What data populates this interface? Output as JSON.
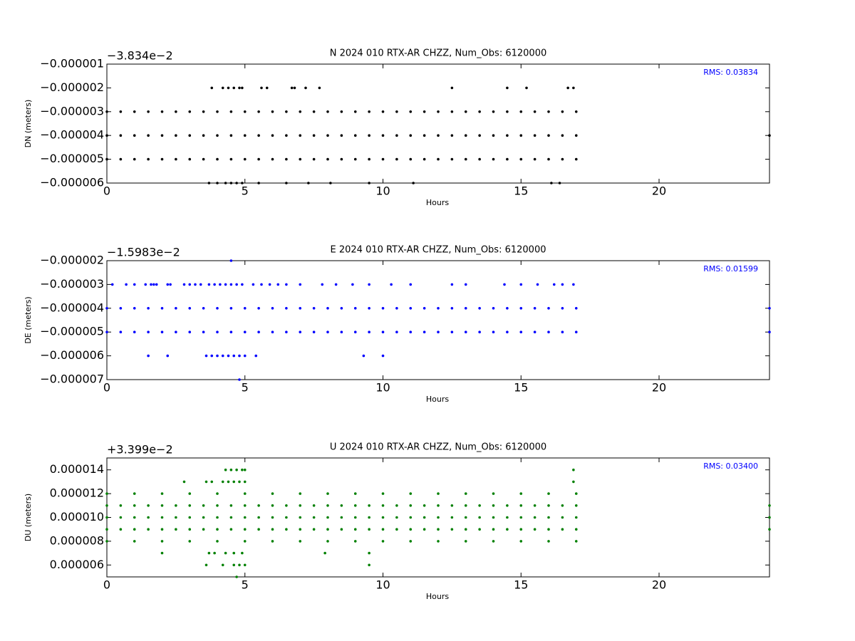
{
  "chart_data": [
    {
      "type": "scatter",
      "title": "N 2024 010 RTX-AR  CHZZ, Num_Obs: 6120000",
      "xlabel": "Hours",
      "ylabel": "DN (meters)",
      "offset_label": "−3.834e−2",
      "annotation": "RMS:  0.03834",
      "color": "#000000",
      "annotation_color": "#0000ff",
      "xlim": [
        0,
        24
      ],
      "xticks": [
        0,
        5,
        10,
        15,
        20
      ],
      "ylim": [
        -6e-06,
        -1e-06
      ],
      "yticks": [
        {
          "value": -6e-06,
          "label": "−0.000006"
        },
        {
          "value": -5e-06,
          "label": "−0.000005"
        },
        {
          "value": -4e-06,
          "label": "−0.000004"
        },
        {
          "value": -3e-06,
          "label": "−0.000003"
        },
        {
          "value": -2e-06,
          "label": "−0.000002"
        },
        {
          "value": -1e-06,
          "label": "−0.000001"
        }
      ],
      "x": [
        0,
        0.5,
        1,
        1.5,
        2,
        2.5,
        3,
        3.5,
        4,
        4.5,
        5,
        5.5,
        6,
        6.5,
        7,
        7.5,
        8,
        8.5,
        9,
        9.5,
        10,
        10.5,
        11,
        11.5,
        12,
        12.5,
        13,
        13.5,
        14,
        14.5,
        15,
        15.5,
        16,
        16.5,
        17,
        0,
        0.5,
        1,
        1.5,
        2,
        2.5,
        3,
        3.5,
        4,
        4.5,
        5,
        5.5,
        6,
        6.5,
        7,
        7.5,
        8,
        8.5,
        9,
        9.5,
        10,
        10.5,
        11,
        11.5,
        12,
        12.5,
        13,
        13.5,
        14,
        14.5,
        15,
        15.5,
        16,
        16.5,
        17,
        0,
        0.5,
        1,
        1.5,
        2,
        2.5,
        3,
        3.5,
        4,
        4.5,
        5,
        5.5,
        6,
        6.5,
        7,
        7.5,
        8,
        8.5,
        9,
        9.5,
        10,
        10.5,
        11,
        11.5,
        12,
        12.5,
        13,
        13.5,
        14,
        14.5,
        15,
        15.5,
        16,
        16.5,
        17,
        3.8,
        4.2,
        4.4,
        4.6,
        4.8,
        4.9,
        5.6,
        5.8,
        6.7,
        6.8,
        7.2,
        7.7,
        12.5,
        14.5,
        15.2,
        16.7,
        16.9,
        3.7,
        4.0,
        4.3,
        4.5,
        4.7,
        4.9,
        5.5,
        6.5,
        7.3,
        8.1,
        9.5,
        11.1,
        16.1,
        16.4,
        24
      ],
      "values": [
        -3e-06,
        -3e-06,
        -3e-06,
        -3e-06,
        -3e-06,
        -3e-06,
        -3e-06,
        -3e-06,
        -3e-06,
        -3e-06,
        -3e-06,
        -3e-06,
        -3e-06,
        -3e-06,
        -3e-06,
        -3e-06,
        -3e-06,
        -3e-06,
        -3e-06,
        -3e-06,
        -3e-06,
        -3e-06,
        -3e-06,
        -3e-06,
        -3e-06,
        -3e-06,
        -3e-06,
        -3e-06,
        -3e-06,
        -3e-06,
        -3e-06,
        -3e-06,
        -3e-06,
        -3e-06,
        -3e-06,
        -4e-06,
        -4e-06,
        -4e-06,
        -4e-06,
        -4e-06,
        -4e-06,
        -4e-06,
        -4e-06,
        -4e-06,
        -4e-06,
        -4e-06,
        -4e-06,
        -4e-06,
        -4e-06,
        -4e-06,
        -4e-06,
        -4e-06,
        -4e-06,
        -4e-06,
        -4e-06,
        -4e-06,
        -4e-06,
        -4e-06,
        -4e-06,
        -4e-06,
        -4e-06,
        -4e-06,
        -4e-06,
        -4e-06,
        -4e-06,
        -4e-06,
        -4e-06,
        -4e-06,
        -4e-06,
        -4e-06,
        -5e-06,
        -5e-06,
        -5e-06,
        -5e-06,
        -5e-06,
        -5e-06,
        -5e-06,
        -5e-06,
        -5e-06,
        -5e-06,
        -5e-06,
        -5e-06,
        -5e-06,
        -5e-06,
        -5e-06,
        -5e-06,
        -5e-06,
        -5e-06,
        -5e-06,
        -5e-06,
        -5e-06,
        -5e-06,
        -5e-06,
        -5e-06,
        -5e-06,
        -5e-06,
        -5e-06,
        -5e-06,
        -5e-06,
        -5e-06,
        -5e-06,
        -5e-06,
        -5e-06,
        -5e-06,
        -5e-06,
        -2e-06,
        -2e-06,
        -2e-06,
        -2e-06,
        -2e-06,
        -2e-06,
        -2e-06,
        -2e-06,
        -2e-06,
        -2e-06,
        -2e-06,
        -2e-06,
        -2e-06,
        -2e-06,
        -2e-06,
        -2e-06,
        -2e-06,
        -6e-06,
        -6e-06,
        -6e-06,
        -6e-06,
        -6e-06,
        -6e-06,
        -6e-06,
        -6e-06,
        -6e-06,
        -6e-06,
        -6e-06,
        -6e-06,
        -6e-06,
        -6e-06,
        -4e-06
      ]
    },
    {
      "type": "scatter",
      "title": "E 2024 010 RTX-AR  CHZZ, Num_Obs: 6120000",
      "xlabel": "Hours",
      "ylabel": "DE (meters)",
      "offset_label": "−1.5983e−2",
      "annotation": "RMS:  0.01599",
      "color": "#0000ff",
      "annotation_color": "#0000ff",
      "xlim": [
        0,
        24
      ],
      "xticks": [
        0,
        5,
        10,
        15,
        20
      ],
      "ylim": [
        -7e-06,
        -2e-06
      ],
      "yticks": [
        {
          "value": -7e-06,
          "label": "−0.000007"
        },
        {
          "value": -6e-06,
          "label": "−0.000006"
        },
        {
          "value": -5e-06,
          "label": "−0.000005"
        },
        {
          "value": -4e-06,
          "label": "−0.000004"
        },
        {
          "value": -3e-06,
          "label": "−0.000003"
        },
        {
          "value": -2e-06,
          "label": "−0.000002"
        }
      ],
      "x": [
        0,
        0.5,
        1,
        1.5,
        2,
        2.5,
        3,
        3.5,
        4,
        4.5,
        5,
        5.5,
        6,
        6.5,
        7,
        7.5,
        8,
        8.5,
        9,
        9.5,
        10,
        10.5,
        11,
        11.5,
        12,
        12.5,
        13,
        13.5,
        14,
        14.5,
        15,
        15.5,
        16,
        16.5,
        17,
        0,
        0.5,
        1,
        1.5,
        2,
        2.5,
        3,
        3.5,
        4,
        4.5,
        5,
        5.5,
        6,
        6.5,
        7,
        7.5,
        8,
        8.5,
        9,
        9.5,
        10,
        10.5,
        11,
        11.5,
        12,
        12.5,
        13,
        13.5,
        14,
        14.5,
        15,
        15.5,
        16,
        16.5,
        17,
        24,
        24,
        0.2,
        0.7,
        1.0,
        1.4,
        1.6,
        1.7,
        1.8,
        2.2,
        2.3,
        2.8,
        3.0,
        3.2,
        3.4,
        3.7,
        3.9,
        4.1,
        4.3,
        4.5,
        4.7,
        4.9,
        5.3,
        5.6,
        5.9,
        6.2,
        6.5,
        7.0,
        7.8,
        8.3,
        8.9,
        9.5,
        10.3,
        11.0,
        12.5,
        13.0,
        14.4,
        15.0,
        15.6,
        16.2,
        16.5,
        16.9,
        1.5,
        2.2,
        3.6,
        3.8,
        4.0,
        4.2,
        4.4,
        4.6,
        4.8,
        5.0,
        5.4,
        9.3,
        10.0,
        4.5,
        4.8
      ],
      "values": [
        -4e-06,
        -4e-06,
        -4e-06,
        -4e-06,
        -4e-06,
        -4e-06,
        -4e-06,
        -4e-06,
        -4e-06,
        -4e-06,
        -4e-06,
        -4e-06,
        -4e-06,
        -4e-06,
        -4e-06,
        -4e-06,
        -4e-06,
        -4e-06,
        -4e-06,
        -4e-06,
        -4e-06,
        -4e-06,
        -4e-06,
        -4e-06,
        -4e-06,
        -4e-06,
        -4e-06,
        -4e-06,
        -4e-06,
        -4e-06,
        -4e-06,
        -4e-06,
        -4e-06,
        -4e-06,
        -4e-06,
        -5e-06,
        -5e-06,
        -5e-06,
        -5e-06,
        -5e-06,
        -5e-06,
        -5e-06,
        -5e-06,
        -5e-06,
        -5e-06,
        -5e-06,
        -5e-06,
        -5e-06,
        -5e-06,
        -5e-06,
        -5e-06,
        -5e-06,
        -5e-06,
        -5e-06,
        -5e-06,
        -5e-06,
        -5e-06,
        -5e-06,
        -5e-06,
        -5e-06,
        -5e-06,
        -5e-06,
        -5e-06,
        -5e-06,
        -5e-06,
        -5e-06,
        -5e-06,
        -5e-06,
        -5e-06,
        -5e-06,
        -4e-06,
        -5e-06,
        -3e-06,
        -3e-06,
        -3e-06,
        -3e-06,
        -3e-06,
        -3e-06,
        -3e-06,
        -3e-06,
        -3e-06,
        -3e-06,
        -3e-06,
        -3e-06,
        -3e-06,
        -3e-06,
        -3e-06,
        -3e-06,
        -3e-06,
        -3e-06,
        -3e-06,
        -3e-06,
        -3e-06,
        -3e-06,
        -3e-06,
        -3e-06,
        -3e-06,
        -3e-06,
        -3e-06,
        -3e-06,
        -3e-06,
        -3e-06,
        -3e-06,
        -3e-06,
        -3e-06,
        -3e-06,
        -3e-06,
        -3e-06,
        -3e-06,
        -3e-06,
        -3e-06,
        -3e-06,
        -6e-06,
        -6e-06,
        -6e-06,
        -6e-06,
        -6e-06,
        -6e-06,
        -6e-06,
        -6e-06,
        -6e-06,
        -6e-06,
        -6e-06,
        -6e-06,
        -6e-06,
        -2e-06,
        -7e-06
      ]
    },
    {
      "type": "scatter",
      "title": "U 2024 010 RTX-AR  CHZZ, Num_Obs: 6120000",
      "xlabel": "Hours",
      "ylabel": "DU (meters)",
      "offset_label": "+3.399e−2",
      "annotation": "RMS:  0.03400",
      "color": "#008000",
      "annotation_color": "#0000ff",
      "xlim": [
        0,
        24
      ],
      "xticks": [
        0,
        5,
        10,
        15,
        20
      ],
      "ylim": [
        5e-06,
        1.5e-05
      ],
      "yticks": [
        {
          "value": 6e-06,
          "label": "0.000006"
        },
        {
          "value": 8e-06,
          "label": "0.000008"
        },
        {
          "value": 1e-05,
          "label": "0.000010"
        },
        {
          "value": 1.2e-05,
          "label": "0.000012"
        },
        {
          "value": 1.4e-05,
          "label": "0.000014"
        }
      ],
      "x": [
        0,
        0.5,
        1,
        1.5,
        2,
        2.5,
        3,
        3.5,
        4,
        4.5,
        5,
        5.5,
        6,
        6.5,
        7,
        7.5,
        8,
        8.5,
        9,
        9.5,
        10,
        10.5,
        11,
        11.5,
        12,
        12.5,
        13,
        13.5,
        14,
        14.5,
        15,
        15.5,
        16,
        16.5,
        17,
        0,
        0.5,
        1,
        1.5,
        2,
        2.5,
        3,
        3.5,
        4,
        4.5,
        5,
        5.5,
        6,
        6.5,
        7,
        7.5,
        8,
        8.5,
        9,
        9.5,
        10,
        10.5,
        11,
        11.5,
        12,
        12.5,
        13,
        13.5,
        14,
        14.5,
        15,
        15.5,
        16,
        16.5,
        17,
        0,
        0.5,
        1,
        1.5,
        2,
        2.5,
        3,
        3.5,
        4,
        4.5,
        5,
        5.5,
        6,
        6.5,
        7,
        7.5,
        8,
        8.5,
        9,
        9.5,
        10,
        10.5,
        11,
        11.5,
        12,
        12.5,
        13,
        13.5,
        14,
        14.5,
        15,
        15.5,
        16,
        16.5,
        17,
        24,
        24,
        24,
        0,
        1,
        2,
        3,
        4,
        5,
        6,
        7,
        8,
        9,
        10,
        11,
        12,
        13,
        14,
        15,
        16,
        17,
        0,
        1,
        2,
        3,
        4,
        5,
        6,
        7,
        8,
        9,
        10,
        11,
        12,
        13,
        14,
        15,
        16,
        17,
        2.8,
        3.6,
        3.8,
        4.2,
        4.4,
        4.6,
        4.8,
        5.0,
        16.9,
        4.3,
        4.5,
        4.7,
        4.9,
        5.0,
        16.9,
        2.0,
        3.7,
        3.9,
        4.3,
        4.6,
        4.9,
        7.9,
        9.5,
        3.6,
        4.2,
        4.6,
        4.8,
        5.0,
        9.5,
        4.7
      ],
      "values": [
        9e-06,
        9e-06,
        9e-06,
        9e-06,
        9e-06,
        9e-06,
        9e-06,
        9e-06,
        9e-06,
        9e-06,
        9e-06,
        9e-06,
        9e-06,
        9e-06,
        9e-06,
        9e-06,
        9e-06,
        9e-06,
        9e-06,
        9e-06,
        9e-06,
        9e-06,
        9e-06,
        9e-06,
        9e-06,
        9e-06,
        9e-06,
        9e-06,
        9e-06,
        9e-06,
        9e-06,
        9e-06,
        9e-06,
        9e-06,
        9e-06,
        1e-05,
        1e-05,
        1e-05,
        1e-05,
        1e-05,
        1e-05,
        1e-05,
        1e-05,
        1e-05,
        1e-05,
        1e-05,
        1e-05,
        1e-05,
        1e-05,
        1e-05,
        1e-05,
        1e-05,
        1e-05,
        1e-05,
        1e-05,
        1e-05,
        1e-05,
        1e-05,
        1e-05,
        1e-05,
        1e-05,
        1e-05,
        1e-05,
        1e-05,
        1e-05,
        1e-05,
        1e-05,
        1e-05,
        1e-05,
        1e-05,
        1.1e-05,
        1.1e-05,
        1.1e-05,
        1.1e-05,
        1.1e-05,
        1.1e-05,
        1.1e-05,
        1.1e-05,
        1.1e-05,
        1.1e-05,
        1.1e-05,
        1.1e-05,
        1.1e-05,
        1.1e-05,
        1.1e-05,
        1.1e-05,
        1.1e-05,
        1.1e-05,
        1.1e-05,
        1.1e-05,
        1.1e-05,
        1.1e-05,
        1.1e-05,
        1.1e-05,
        1.1e-05,
        1.1e-05,
        1.1e-05,
        1.1e-05,
        1.1e-05,
        1.1e-05,
        1.1e-05,
        1.1e-05,
        1.1e-05,
        1.1e-05,
        1.1e-05,
        9e-06,
        1e-05,
        1.1e-05,
        1.2e-05,
        1.2e-05,
        1.2e-05,
        1.2e-05,
        1.2e-05,
        1.2e-05,
        1.2e-05,
        1.2e-05,
        1.2e-05,
        1.2e-05,
        1.2e-05,
        1.2e-05,
        1.2e-05,
        1.2e-05,
        1.2e-05,
        1.2e-05,
        1.2e-05,
        1.2e-05,
        8e-06,
        8e-06,
        8e-06,
        8e-06,
        8e-06,
        8e-06,
        8e-06,
        8e-06,
        8e-06,
        8e-06,
        8e-06,
        8e-06,
        8e-06,
        8e-06,
        8e-06,
        8e-06,
        8e-06,
        8e-06,
        1.3e-05,
        1.3e-05,
        1.3e-05,
        1.3e-05,
        1.3e-05,
        1.3e-05,
        1.3e-05,
        1.3e-05,
        1.3e-05,
        1.4e-05,
        1.4e-05,
        1.4e-05,
        1.4e-05,
        1.4e-05,
        1.4e-05,
        7e-06,
        7e-06,
        7e-06,
        7e-06,
        7e-06,
        7e-06,
        7e-06,
        7e-06,
        6e-06,
        6e-06,
        6e-06,
        6e-06,
        6e-06,
        6e-06,
        5e-06
      ]
    }
  ]
}
